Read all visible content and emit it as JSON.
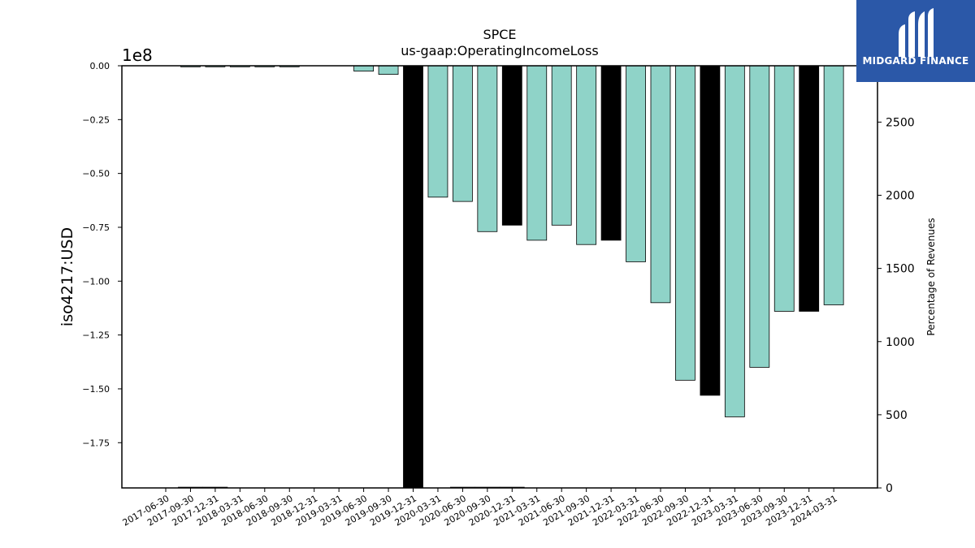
{
  "chart_data": {
    "type": "bar",
    "title": "SPCE",
    "subtitle": "us-gaap:OperatingIncomeLoss",
    "ylabel": "iso4217:USD",
    "y2label": "Percentage of Revenues",
    "y_offset_text": "1e8",
    "ylim": [
      -1.96,
      0
    ],
    "y2lim": [
      0,
      2885
    ],
    "yticks": [
      "0.00",
      "−0.25",
      "−0.50",
      "−0.75",
      "−1.00",
      "−1.25",
      "−1.50",
      "−1.75"
    ],
    "y2ticks": [
      "0",
      "500",
      "1000",
      "1500",
      "2000",
      "2500"
    ],
    "categories": [
      "2017-06-30",
      "2017-09-30",
      "2017-12-31",
      "2018-03-31",
      "2018-06-30",
      "2018-09-30",
      "2018-12-31",
      "2019-03-31",
      "2019-06-30",
      "2019-09-30",
      "2019-12-31",
      "2020-03-31",
      "2020-06-30",
      "2020-09-30",
      "2020-12-31",
      "2021-03-31",
      "2021-06-30",
      "2021-09-30",
      "2021-12-31",
      "2022-03-31",
      "2022-06-30",
      "2022-09-30",
      "2022-12-31",
      "2023-03-31",
      "2023-06-30",
      "2023-09-30",
      "2023-12-31",
      "2024-03-31"
    ],
    "series": [
      {
        "values": [
          0,
          -0.005,
          -0.005,
          -0.005,
          -0.005,
          -0.005,
          0,
          0,
          -0.025,
          -0.04,
          -1.96,
          -0.61,
          -0.63,
          -0.77,
          -0.74,
          -0.81,
          -0.74,
          -0.83,
          -0.81,
          -0.91,
          -1.1,
          -1.46,
          -1.53,
          -1.63,
          -1.4,
          -1.14,
          -1.14,
          -1.11
        ],
        "highlight": [
          false,
          false,
          false,
          false,
          false,
          false,
          false,
          false,
          false,
          false,
          true,
          false,
          false,
          false,
          true,
          false,
          false,
          false,
          true,
          false,
          false,
          false,
          true,
          false,
          false,
          false,
          true,
          false
        ]
      },
      {
        "values": [
          0,
          5,
          5,
          0,
          0,
          0,
          0,
          0,
          0,
          0,
          0,
          0,
          5,
          5,
          5,
          0,
          0,
          0,
          0,
          0,
          0,
          0,
          0,
          0,
          0,
          0,
          0,
          0
        ]
      }
    ],
    "colors": {
      "bar": "#8fd3c8",
      "highlight": "#000000",
      "edge": "#000000"
    },
    "grid": false
  },
  "logo": {
    "text": "MIDGARD FINANCE"
  }
}
